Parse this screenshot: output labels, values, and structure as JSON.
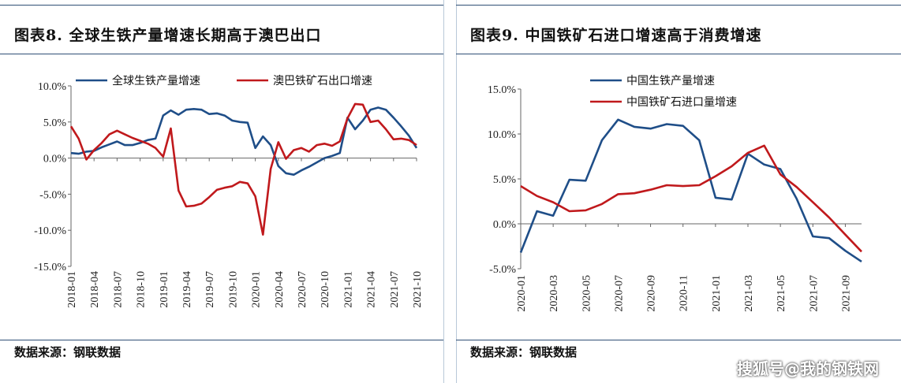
{
  "watermark": "搜狐号@我的钢铁网",
  "charts": {
    "left": {
      "title": "图表8. 全球生铁产量增速长期高于澳巴出口",
      "source": "数据来源：钢联数据"
    },
    "right": {
      "title": "图表9. 中国铁矿石进口增速高于消费增速",
      "source": "数据来源：钢联数据"
    }
  },
  "chart_data": [
    {
      "type": "line",
      "title": "图表8. 全球生铁产量增速长期高于澳巴出口",
      "x": [
        "2018-01",
        "2018-02",
        "2018-03",
        "2018-04",
        "2018-05",
        "2018-06",
        "2018-07",
        "2018-08",
        "2018-09",
        "2018-10",
        "2018-11",
        "2018-12",
        "2019-01",
        "2019-02",
        "2019-03",
        "2019-04",
        "2019-05",
        "2019-06",
        "2019-07",
        "2019-08",
        "2019-09",
        "2019-10",
        "2019-11",
        "2019-12",
        "2020-01",
        "2020-02",
        "2020-03",
        "2020-04",
        "2020-05",
        "2020-06",
        "2020-07",
        "2020-08",
        "2020-09",
        "2020-10",
        "2020-11",
        "2020-12",
        "2021-01",
        "2021-02",
        "2021-03",
        "2021-04",
        "2021-05",
        "2021-06",
        "2021-07",
        "2021-08",
        "2021-09",
        "2021-10"
      ],
      "xticks": [
        "2018-01",
        "2018-04",
        "2018-07",
        "2018-10",
        "2019-01",
        "2019-04",
        "2019-07",
        "2019-10",
        "2020-01",
        "2020-04",
        "2020-07",
        "2020-10",
        "2021-01",
        "2021-04",
        "2021-07",
        "2021-10"
      ],
      "ylim": [
        -15,
        10
      ],
      "yticks": [
        "10.0%",
        "5.0%",
        "0.0%",
        "-5.0%",
        "-10.0%",
        "-15.0%"
      ],
      "ytick_values": [
        10,
        5,
        0,
        -5,
        -10,
        -15
      ],
      "legend_position": "top",
      "series": [
        {
          "name": "全球生铁产量增速",
          "color": "#1f4e88",
          "values": [
            0.7,
            0.6,
            0.9,
            1.0,
            1.5,
            1.9,
            2.3,
            1.8,
            1.8,
            2.1,
            2.5,
            2.7,
            5.9,
            6.6,
            6.0,
            6.7,
            6.8,
            6.7,
            6.1,
            6.2,
            5.9,
            5.2,
            5.0,
            4.9,
            1.4,
            3.0,
            1.8,
            -1.1,
            -2.1,
            -2.3,
            -1.7,
            -1.2,
            -0.6,
            0.0,
            0.3,
            0.7,
            5.6,
            4.0,
            5.2,
            6.7,
            7.0,
            6.7,
            5.6,
            4.4,
            3.1,
            1.4
          ]
        },
        {
          "name": "澳巴铁矿石出口增速",
          "color": "#c0191c",
          "values": [
            4.4,
            2.7,
            -0.2,
            1.1,
            2.1,
            3.3,
            3.8,
            3.3,
            2.8,
            2.4,
            2.0,
            1.4,
            0.2,
            4.1,
            -4.5,
            -6.7,
            -6.6,
            -6.3,
            -5.4,
            -4.4,
            -4.1,
            -3.9,
            -3.3,
            -3.5,
            -5.3,
            -10.6,
            -1.5,
            2.2,
            -0.1,
            1.1,
            1.4,
            0.9,
            1.8,
            2.0,
            1.7,
            2.3,
            5.5,
            7.5,
            7.4,
            5.0,
            5.2,
            4.0,
            2.6,
            2.7,
            2.5,
            1.8
          ]
        }
      ]
    },
    {
      "type": "line",
      "title": "图表9. 中国铁矿石进口增速高于消费增速",
      "x": [
        "2020-01",
        "2020-02",
        "2020-03",
        "2020-04",
        "2020-05",
        "2020-06",
        "2020-07",
        "2020-08",
        "2020-09",
        "2020-10",
        "2020-11",
        "2020-12",
        "2021-01",
        "2021-02",
        "2021-03",
        "2021-04",
        "2021-05",
        "2021-06",
        "2021-07",
        "2021-08",
        "2021-09",
        "2021-10"
      ],
      "xticks": [
        "2020-01",
        "2020-03",
        "2020-05",
        "2020-07",
        "2020-09",
        "2020-11",
        "2021-01",
        "2021-03",
        "2021-05",
        "2021-07",
        "2021-09"
      ],
      "ylim": [
        -5,
        15
      ],
      "yticks": [
        "15.0%",
        "10.0%",
        "5.0%",
        "0.0%",
        "-5.0%"
      ],
      "ytick_values": [
        15,
        10,
        5,
        0,
        -5
      ],
      "legend_position": "top-left",
      "series": [
        {
          "name": "中国生铁产量增速",
          "color": "#1f4e88",
          "values": [
            -3.2,
            1.4,
            0.9,
            4.9,
            4.8,
            9.3,
            11.6,
            10.8,
            10.6,
            11.1,
            10.9,
            9.3,
            2.9,
            2.7,
            7.8,
            6.6,
            6.1,
            2.8,
            -1.4,
            -1.6,
            -3.0,
            -4.2
          ]
        },
        {
          "name": "中国铁矿石进口量增速",
          "color": "#c0191c",
          "values": [
            4.2,
            3.1,
            2.4,
            1.4,
            1.5,
            2.2,
            3.3,
            3.4,
            3.8,
            4.3,
            4.2,
            4.3,
            5.3,
            6.4,
            7.9,
            8.7,
            5.5,
            4.1,
            2.4,
            0.7,
            -1.2,
            -3.1
          ]
        }
      ]
    }
  ]
}
